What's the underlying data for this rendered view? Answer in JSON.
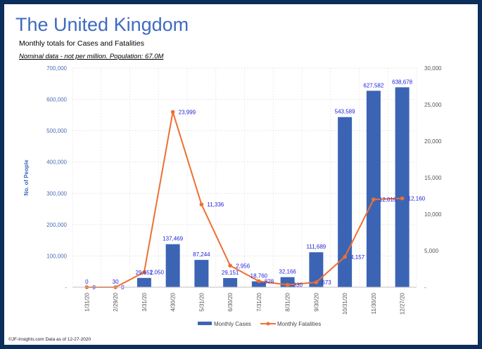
{
  "header": {
    "title": "The United Kingdom",
    "subtitle": "Monthly totals for Cases and Fatalities",
    "note": "Nominal data - not per million.  Population: 67.0M"
  },
  "footer": "©JF-Insights.com  Data as of 12-27-2020",
  "colors": {
    "cases": "#3c64b4",
    "fatalities": "#ed7033",
    "labels": "#2222dd",
    "frame": "#0b2e5a"
  },
  "chart_data": {
    "type": "bar+line",
    "title": "The United Kingdom",
    "ylabel": "No. of People",
    "categories": [
      "1/31/20",
      "2/29/20",
      "3/31/20",
      "4/30/20",
      "5/31/20",
      "6/30/20",
      "7/31/20",
      "8/31/20",
      "9/30/20",
      "10/31/20",
      "11/30/20",
      "12/27/20"
    ],
    "series": [
      {
        "name": "Monthly Cases",
        "type": "bar",
        "axis": "left",
        "values": [
          0,
          30,
          29651,
          137469,
          87244,
          29151,
          18760,
          32166,
          111689,
          543589,
          627582,
          638678
        ],
        "labels": [
          "0",
          "30",
          "29,651",
          "137,469",
          "87,244",
          "29,151",
          "18,760",
          "32,166",
          "111,689",
          "543,589",
          "627,582",
          "638,678"
        ]
      },
      {
        "name": "Monthly Fatalities",
        "type": "line",
        "axis": "right",
        "values": [
          0,
          0,
          2050,
          23999,
          11336,
          2956,
          828,
          330,
          673,
          4157,
          12016,
          12160
        ],
        "labels": [
          "0",
          "0",
          "2,050",
          "23,999",
          "11,336",
          "2,956",
          "828",
          "330",
          "673",
          "4,157",
          "12,016",
          "12,160"
        ]
      }
    ],
    "left_axis": {
      "ylim": [
        0,
        700000
      ],
      "ticks": [
        "-",
        "100,000",
        "200,000",
        "300,000",
        "400,000",
        "500,000",
        "600,000",
        "700,000"
      ]
    },
    "right_axis": {
      "ylim": [
        0,
        30000
      ],
      "ticks": [
        "-",
        "5,000",
        "10,000",
        "15,000",
        "20,000",
        "25,000",
        "30,000"
      ]
    },
    "grid": true,
    "legend": {
      "position": "bottom",
      "entries": [
        "Monthly Cases",
        "Monthly Fatalities"
      ]
    }
  }
}
